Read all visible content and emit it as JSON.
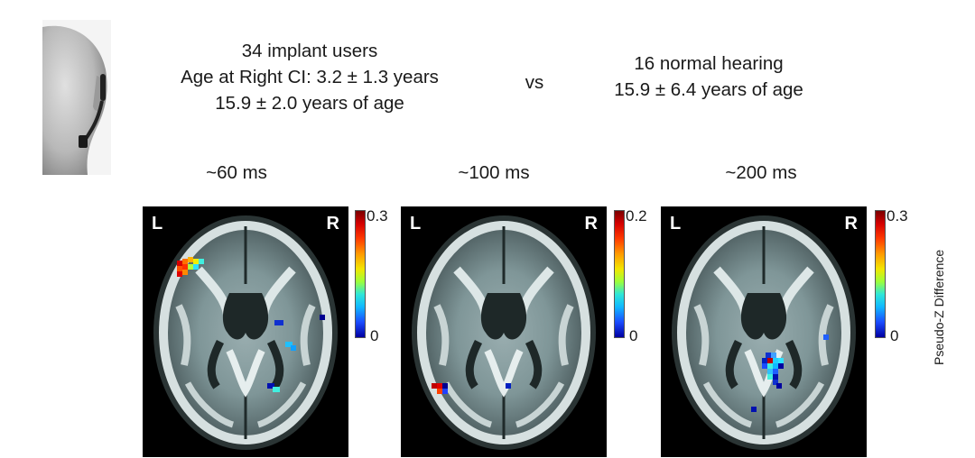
{
  "groups": {
    "ci": {
      "line1": "34 implant users",
      "line2": "Age at Right CI: 3.2 ± 1.3 years",
      "line3": "15.9 ± 2.0 years of age"
    },
    "vs": "vs",
    "nh": {
      "line1": "16 normal hearing",
      "line2": "15.9 ± 6.4 years of age"
    }
  },
  "panels": [
    {
      "time": "~60 ms",
      "left": "L",
      "right": "R",
      "scale_max": "0.3",
      "scale_min": "0"
    },
    {
      "time": "~100 ms",
      "left": "L",
      "right": "R",
      "scale_max": "0.2",
      "scale_min": "0"
    },
    {
      "time": "~200 ms",
      "left": "L",
      "right": "R",
      "scale_max": "0.3",
      "scale_min": "0"
    }
  ],
  "colorbar_label": "Pseudo-Z Difference",
  "colors": {
    "panel_bg": "#000000",
    "text": "#1a1a1a"
  }
}
